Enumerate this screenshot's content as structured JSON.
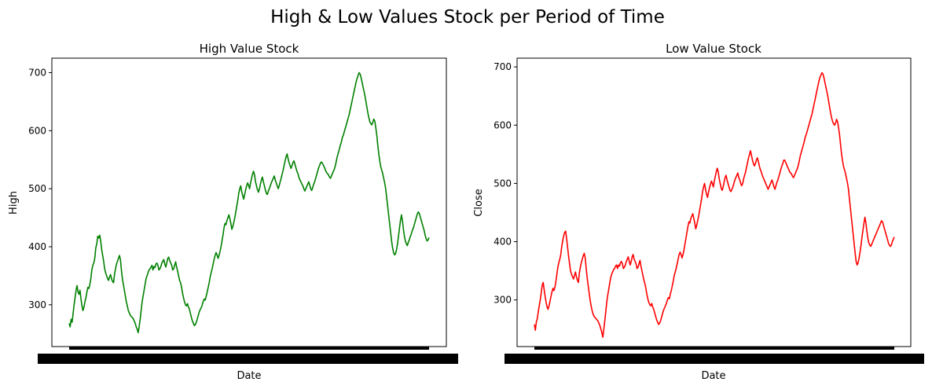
{
  "figure": {
    "suptitle": "High & Low Values Stock per Period of Time"
  },
  "colors": {
    "high_line": "#008000",
    "low_line": "#ff0000",
    "axes": "#000000",
    "background": "#ffffff"
  },
  "chart_data": [
    {
      "type": "line",
      "title": "High Value Stock",
      "xlabel": "Date",
      "ylabel": "High",
      "ylim": [
        228,
        725
      ],
      "yticks": [
        300,
        400,
        500,
        600,
        700
      ],
      "x_tick_labels_note": "overlapping dense date labels rendered as a solid black band",
      "grid": false,
      "series": [
        {
          "values": [
            268,
            262,
            275,
            270,
            285,
            300,
            312,
            325,
            333,
            322,
            318,
            325,
            310,
            298,
            290,
            296,
            305,
            312,
            322,
            330,
            328,
            335,
            345,
            360,
            368,
            372,
            380,
            398,
            405,
            418,
            415,
            420,
            410,
            395,
            385,
            375,
            362,
            355,
            350,
            345,
            342,
            348,
            352,
            345,
            340,
            338,
            352,
            362,
            370,
            375,
            380,
            385,
            378,
            360,
            345,
            335,
            325,
            315,
            305,
            298,
            290,
            286,
            282,
            280,
            278,
            276,
            272,
            268,
            262,
            258,
            252,
            262,
            275,
            290,
            305,
            315,
            325,
            335,
            345,
            350,
            355,
            360,
            362,
            365,
            368,
            360,
            366,
            364,
            370,
            372,
            368,
            360,
            362,
            366,
            372,
            375,
            378,
            370,
            365,
            372,
            380,
            382,
            376,
            372,
            368,
            360,
            362,
            368,
            374,
            365,
            358,
            350,
            342,
            338,
            330,
            320,
            312,
            305,
            300,
            298,
            302,
            296,
            292,
            285,
            278,
            272,
            268,
            264,
            266,
            270,
            276,
            282,
            288,
            292,
            295,
            300,
            306,
            310,
            308,
            315,
            322,
            330,
            338,
            348,
            355,
            362,
            370,
            378,
            385,
            390,
            386,
            380,
            385,
            392,
            400,
            410,
            420,
            432,
            440,
            438,
            445,
            450,
            455,
            448,
            440,
            430,
            435,
            442,
            450,
            460,
            470,
            480,
            492,
            500,
            505,
            495,
            488,
            482,
            490,
            498,
            505,
            510,
            506,
            500,
            510,
            518,
            525,
            530,
            524,
            512,
            505,
            498,
            494,
            500,
            508,
            515,
            520,
            512,
            505,
            498,
            492,
            490,
            496,
            500,
            505,
            510,
            514,
            518,
            522,
            515,
            510,
            505,
            500,
            505,
            512,
            518,
            525,
            532,
            540,
            548,
            555,
            560,
            552,
            545,
            540,
            535,
            540,
            545,
            548,
            542,
            536,
            530,
            526,
            520,
            515,
            512,
            508,
            505,
            500,
            496,
            500,
            504,
            508,
            512,
            506,
            500,
            497,
            502,
            508,
            512,
            518,
            524,
            530,
            536,
            540,
            545,
            546,
            543,
            540,
            536,
            532,
            528,
            526,
            524,
            520,
            518,
            522,
            526,
            530,
            534,
            540,
            548,
            556,
            562,
            568,
            575,
            580,
            588,
            592,
            598,
            604,
            610,
            616,
            622,
            628,
            636,
            644,
            652,
            660,
            668,
            676,
            684,
            690,
            695,
            700,
            698,
            692,
            684,
            676,
            668,
            660,
            650,
            640,
            630,
            622,
            615,
            612,
            610,
            615,
            620,
            616,
            605,
            592,
            575,
            560,
            548,
            538,
            532,
            526,
            518,
            510,
            500,
            485,
            470,
            455,
            440,
            425,
            410,
            398,
            390,
            386,
            388,
            395,
            405,
            418,
            432,
            445,
            455,
            445,
            430,
            418,
            410,
            405,
            402,
            408,
            412,
            418,
            422,
            428,
            432,
            438,
            444,
            450,
            456,
            460,
            458,
            452,
            446,
            440,
            434,
            428,
            420,
            414,
            410,
            412,
            416
          ]
        }
      ]
    },
    {
      "type": "line",
      "title": "Low Value Stock",
      "xlabel": "Date",
      "ylabel": "Close",
      "ylim": [
        220,
        715
      ],
      "yticks": [
        300,
        400,
        500,
        600,
        700
      ],
      "x_tick_labels_note": "overlapping dense date labels rendered as a solid black band",
      "grid": false,
      "series": [
        {
          "values": [
            258,
            248,
            262,
            268,
            280,
            290,
            300,
            312,
            325,
            330,
            318,
            306,
            296,
            288,
            284,
            290,
            298,
            306,
            314,
            320,
            316,
            322,
            332,
            344,
            356,
            364,
            370,
            378,
            392,
            402,
            410,
            416,
            418,
            405,
            390,
            375,
            362,
            350,
            344,
            340,
            336,
            342,
            348,
            340,
            334,
            330,
            346,
            356,
            364,
            370,
            376,
            380,
            372,
            354,
            338,
            325,
            312,
            300,
            290,
            282,
            276,
            272,
            270,
            268,
            266,
            264,
            260,
            256,
            250,
            244,
            236,
            250,
            264,
            280,
            296,
            308,
            318,
            328,
            338,
            344,
            348,
            352,
            354,
            358,
            360,
            354,
            360,
            358,
            364,
            366,
            362,
            354,
            356,
            360,
            366,
            370,
            374,
            366,
            360,
            366,
            374,
            378,
            370,
            366,
            362,
            354,
            356,
            362,
            368,
            358,
            350,
            342,
            334,
            328,
            320,
            310,
            302,
            296,
            292,
            290,
            294,
            288,
            284,
            278,
            272,
            266,
            262,
            258,
            260,
            264,
            270,
            276,
            282,
            286,
            290,
            294,
            300,
            304,
            302,
            310,
            316,
            324,
            332,
            342,
            348,
            354,
            362,
            370,
            378,
            382,
            378,
            372,
            378,
            386,
            396,
            406,
            416,
            426,
            434,
            432,
            440,
            444,
            448,
            440,
            432,
            422,
            428,
            436,
            444,
            454,
            464,
            474,
            486,
            494,
            500,
            490,
            482,
            476,
            484,
            492,
            498,
            504,
            500,
            494,
            504,
            512,
            520,
            526,
            520,
            508,
            500,
            492,
            488,
            494,
            502,
            510,
            514,
            506,
            500,
            494,
            488,
            486,
            490,
            494,
            500,
            506,
            510,
            514,
            518,
            510,
            506,
            500,
            496,
            500,
            508,
            514,
            520,
            528,
            536,
            544,
            550,
            556,
            548,
            540,
            534,
            530,
            534,
            540,
            544,
            538,
            530,
            524,
            520,
            514,
            510,
            506,
            502,
            498,
            494,
            490,
            494,
            498,
            502,
            506,
            500,
            494,
            490,
            496,
            502,
            506,
            512,
            518,
            524,
            530,
            534,
            540,
            540,
            536,
            532,
            528,
            524,
            520,
            518,
            516,
            512,
            510,
            514,
            518,
            522,
            526,
            532,
            540,
            548,
            554,
            560,
            566,
            572,
            580,
            584,
            590,
            596,
            602,
            608,
            614,
            620,
            628,
            636,
            644,
            652,
            660,
            668,
            676,
            682,
            686,
            690,
            688,
            682,
            674,
            666,
            658,
            650,
            640,
            630,
            620,
            612,
            606,
            602,
            600,
            604,
            610,
            606,
            596,
            584,
            568,
            552,
            540,
            530,
            524,
            518,
            510,
            502,
            492,
            476,
            460,
            444,
            428,
            412,
            396,
            380,
            366,
            360,
            364,
            372,
            382,
            394,
            408,
            420,
            432,
            442,
            432,
            418,
            406,
            398,
            394,
            392,
            396,
            400,
            404,
            408,
            412,
            416,
            420,
            424,
            428,
            432,
            436,
            434,
            428,
            422,
            416,
            410,
            404,
            398,
            394,
            392,
            394,
            400,
            404,
            408
          ]
        }
      ]
    }
  ]
}
